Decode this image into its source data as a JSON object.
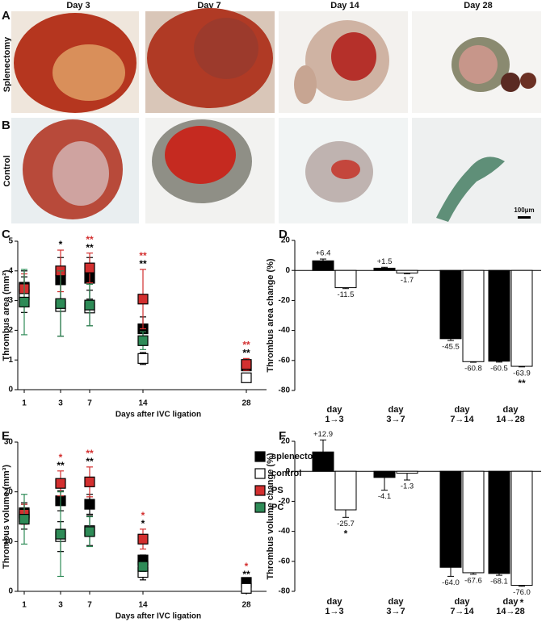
{
  "histology": {
    "rows": [
      {
        "panel": "A",
        "label": "Splenectomy"
      },
      {
        "panel": "B",
        "label": "Control"
      }
    ],
    "columns": [
      "Day 3",
      "Day 7",
      "Day 14",
      "Day 28"
    ],
    "scale_bar": "100μm"
  },
  "chart_data": [
    {
      "panel": "C",
      "type": "scatter",
      "ylabel": "Thrombus area (mm²)",
      "xlabel": "Days after IVC ligation",
      "categories": [
        "1",
        "3",
        "7",
        "14",
        "28"
      ],
      "ylim": [
        0,
        5
      ],
      "yticks": [
        0,
        1,
        2,
        3,
        4,
        5
      ],
      "series": [
        {
          "name": "splenectomy",
          "color": "#000000",
          "values": [
            3.45,
            3.7,
            3.75,
            2.05,
            0.8
          ],
          "errors": [
            0.55,
            0.75,
            0.7,
            0.4,
            0.15
          ],
          "significance": [
            null,
            "*",
            "**",
            "**",
            "**"
          ]
        },
        {
          "name": "control",
          "color": "#ffffff",
          "values": [
            3.2,
            2.8,
            2.75,
            1.05,
            0.4
          ],
          "errors": [
            0.6,
            1.0,
            0.6,
            0.2,
            0.1
          ]
        },
        {
          "name": "PS",
          "color": "#d32f2f",
          "values": [
            3.4,
            4.0,
            4.1,
            3.05,
            0.85
          ],
          "errors": [
            0.5,
            0.7,
            0.5,
            1.0,
            0.2
          ],
          "significance": [
            null,
            null,
            "**",
            "**",
            "**"
          ]
        },
        {
          "name": "PC",
          "color": "#2e8b57",
          "values": [
            2.95,
            2.9,
            2.85,
            1.65,
            null
          ],
          "errors": [
            1.1,
            1.1,
            0.7,
            0.3,
            null
          ]
        }
      ]
    },
    {
      "panel": "D",
      "type": "bar",
      "ylabel": "Thrombus area change (%)",
      "category_prefix": "day",
      "categories": [
        "1→3",
        "3→7",
        "7→14",
        "14→28"
      ],
      "ylim": [
        -80,
        20
      ],
      "yticks": [
        -80,
        -60,
        -40,
        -20,
        0,
        20
      ],
      "series": [
        {
          "name": "splenectomy",
          "color": "#000000",
          "values": [
            6.4,
            1.5,
            -45.5,
            -60.5
          ],
          "value_labels": [
            "+6.4",
            "+1.5",
            "-45.5",
            "-60.5"
          ],
          "errors": [
            1.2,
            0.6,
            1.2,
            0.6
          ]
        },
        {
          "name": "control",
          "color": "#ffffff",
          "values": [
            -11.5,
            -1.7,
            -60.8,
            -63.9
          ],
          "errors": [
            0.6,
            0.5,
            0.4,
            0.4
          ],
          "significance": [
            null,
            null,
            null,
            "**"
          ]
        }
      ]
    },
    {
      "panel": "E",
      "type": "scatter",
      "ylabel": "Thrombus volume (mm³)",
      "xlabel": "Days after IVC ligation",
      "legend": true,
      "categories": [
        "1",
        "3",
        "7",
        "14",
        "28"
      ],
      "ylim": [
        0,
        30
      ],
      "yticks": [
        0,
        10,
        20,
        30
      ],
      "series": [
        {
          "name": "splenectomy",
          "color": "#000000",
          "values": [
            15.8,
            18.2,
            17.5,
            6.3,
            1.8
          ],
          "errors": [
            2,
            2,
            2,
            1,
            0.5
          ],
          "significance": [
            null,
            "**",
            "**",
            "*",
            "**"
          ]
        },
        {
          "name": "control",
          "color": "#ffffff",
          "values": [
            15.0,
            11.0,
            12.2,
            3.8,
            0.6
          ],
          "errors": [
            2.5,
            3,
            3,
            1.5,
            0.3
          ]
        },
        {
          "name": "PS",
          "color": "#d32f2f",
          "values": [
            15.5,
            21.7,
            22.0,
            10.5,
            null
          ],
          "errors": [
            2,
            2.5,
            3,
            2,
            null
          ],
          "significance": [
            null,
            "*",
            "**",
            "*",
            "*"
          ]
        },
        {
          "name": "PC",
          "color": "#2e8b57",
          "values": [
            14.5,
            11.5,
            12.0,
            5.0,
            null
          ],
          "errors": [
            5,
            8.5,
            3,
            1,
            null
          ]
        }
      ]
    },
    {
      "panel": "F",
      "type": "bar",
      "ylabel": "Thrombus volume change (%)",
      "category_prefix": "day",
      "categories": [
        "1→3",
        "3→7",
        "7→14",
        "14→28"
      ],
      "ylim": [
        -80,
        20
      ],
      "yticks": [
        -80,
        -60,
        -40,
        -20,
        0,
        20
      ],
      "series": [
        {
          "name": "splenectomy",
          "color": "#000000",
          "values": [
            12.9,
            -4.1,
            -64.0,
            -68.1
          ],
          "value_labels": [
            "+12.9",
            "-4.1",
            "-64.0",
            "-68.1"
          ],
          "errors": [
            8,
            8.5,
            6,
            1.2
          ]
        },
        {
          "name": "control",
          "color": "#ffffff",
          "values": [
            -25.7,
            -1.3,
            -67.6,
            -76.0
          ],
          "value_labels": [
            "-25.7",
            "-1.3",
            "-67.6",
            "-76.0"
          ],
          "errors": [
            5,
            4.5,
            1,
            0.6
          ],
          "significance": [
            "*",
            null,
            null,
            "*"
          ]
        }
      ]
    }
  ]
}
